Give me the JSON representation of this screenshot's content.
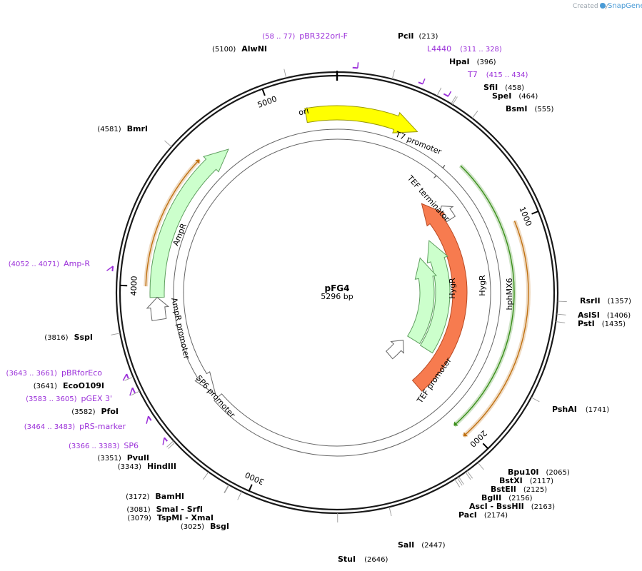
{
  "credit": {
    "created_by": "Created by",
    "brand": "SnapGene"
  },
  "plasmid": {
    "name": "pFG4",
    "size_label": "5296 bp",
    "length": 5296
  },
  "ticks": [
    {
      "value": 1000,
      "label": "1000"
    },
    {
      "value": 2000,
      "label": "2000"
    },
    {
      "value": 3000,
      "label": "3000"
    },
    {
      "value": 4000,
      "label": "4000"
    },
    {
      "value": 5000,
      "label": "5000"
    }
  ],
  "features": [
    {
      "name": "ori",
      "label": "ori",
      "color": "#ffff00",
      "stroke": "#9a9a00",
      "start": 5150,
      "end": 390,
      "strand": 1,
      "track": 0,
      "label_inside": true
    },
    {
      "name": "t7-promoter",
      "label": "T7 promoter",
      "color": "#ffffff",
      "stroke": "#666666",
      "start": 580,
      "end": 600,
      "strand": 1,
      "track": 1,
      "label_inside": false
    },
    {
      "name": "tef-terminator",
      "label": "TEF terminator",
      "color": "#ffffff",
      "stroke": "#666666",
      "start": 840,
      "end": 740,
      "strand": -1,
      "track": 2,
      "label_inside": false
    },
    {
      "name": "hphmx6",
      "label": "hphMX6",
      "color": "#f77b4f",
      "stroke": "#b84a24",
      "start": 2050,
      "end": 640,
      "strand": -1,
      "track": 3,
      "label_inside": true
    },
    {
      "name": "hygr-outer",
      "label": "HygR",
      "color": "#ccffcc",
      "stroke": "#5f9f5f",
      "start": 1800,
      "end": 890,
      "strand": -1,
      "track": 4,
      "label_inside": true
    },
    {
      "name": "hygr-inner",
      "label": "HygR",
      "color": "#ccffcc",
      "stroke": "#5f9f5f",
      "start": 1790,
      "end": 990,
      "strand": -1,
      "track": 5,
      "label_inside": true
    },
    {
      "name": "tef-promoter",
      "label": "TEF promoter",
      "color": "#ffffff",
      "stroke": "#666666",
      "start": 2060,
      "end": 1850,
      "strand": -1,
      "track": 6,
      "label_inside": false
    },
    {
      "name": "ampr",
      "label": "AmpR",
      "color": "#ccffcc",
      "stroke": "#5f9f5f",
      "start": 3950,
      "end": 4750,
      "strand": 1,
      "track": 0,
      "label_inside": true
    },
    {
      "name": "ampr-promoter",
      "label": "AmpR promoter",
      "color": "#ffffff",
      "stroke": "#666666",
      "start": 3845,
      "end": 3950,
      "strand": 1,
      "track": 0,
      "label_inside": false
    },
    {
      "name": "sp6-promoter",
      "label": "SP6 promoter",
      "color": "#ffffff",
      "stroke": "#666666",
      "start": 3365,
      "end": 3384,
      "strand": -1,
      "track": 1,
      "label_inside": false
    }
  ],
  "primer_bars": [
    {
      "name": "l4440-bar",
      "start": 311,
      "end": 328,
      "strand": 1,
      "color": "#9b30d9"
    },
    {
      "name": "t7-bar",
      "start": 415,
      "end": 434,
      "strand": 1,
      "color": "#9b30d9"
    },
    {
      "name": "pbr322ori-f-bar",
      "start": 58,
      "end": 77,
      "strand": 1,
      "color": "#9b30d9"
    },
    {
      "name": "amp-r-bar",
      "start": 4052,
      "end": 4071,
      "strand": -1,
      "color": "#9b30d9"
    },
    {
      "name": "pbrforeco-bar",
      "start": 3643,
      "end": 3661,
      "strand": -1,
      "color": "#9b30d9"
    },
    {
      "name": "pgex3-bar",
      "start": 3583,
      "end": 3605,
      "strand": -1,
      "color": "#9b30d9"
    },
    {
      "name": "prs-marker-bar",
      "start": 3464,
      "end": 3483,
      "strand": -1,
      "color": "#9b30d9"
    },
    {
      "name": "sp6-bar",
      "start": 3366,
      "end": 3383,
      "strand": -1,
      "color": "#9b30d9"
    }
  ],
  "thin_arrows": [
    {
      "name": "primer-arrow-hph-green",
      "color": "#3a8f1a",
      "start": 650,
      "end": 2040,
      "strand": 1,
      "radius_offset": -20
    },
    {
      "name": "primer-arrow-hph-orange",
      "color": "#c07010",
      "start": 1000,
      "end": 2040,
      "strand": 1,
      "radius_offset": 0
    },
    {
      "name": "primer-arrow-ampr-orange",
      "color": "#c07010",
      "start": 4000,
      "end": 4620,
      "strand": 1,
      "radius_offset": 0
    }
  ],
  "sites": [
    {
      "name": "PciI",
      "pos": "(213)",
      "position": 213
    },
    {
      "name": "HpaI",
      "pos": "(396)",
      "position": 396
    },
    {
      "name": "SfiI",
      "pos": "(458)",
      "position": 458
    },
    {
      "name": "SpeI",
      "pos": "(464)",
      "position": 464
    },
    {
      "name": "BsmI",
      "pos": "(555)",
      "position": 555
    },
    {
      "name": "RsrII",
      "pos": "(1357)",
      "position": 1357
    },
    {
      "name": "AsiSI",
      "pos": "(1406)",
      "position": 1406
    },
    {
      "name": "PstI",
      "pos": "(1435)",
      "position": 1435
    },
    {
      "name": "PshAI",
      "pos": "(1741)",
      "position": 1741
    },
    {
      "name": "Bpu10I",
      "pos": "(2065)",
      "position": 2065
    },
    {
      "name": "BstXI",
      "pos": "(2117)",
      "position": 2117
    },
    {
      "name": "BstEII",
      "pos": "(2125)",
      "position": 2125
    },
    {
      "name": "BglII",
      "pos": "(2156)",
      "position": 2156
    },
    {
      "name": "AscI - BssHII",
      "pos": "(2163)",
      "position": 2163
    },
    {
      "name": "PacI",
      "pos": "(2174)",
      "position": 2174
    },
    {
      "name": "SalI",
      "pos": "(2447)",
      "position": 2447
    },
    {
      "name": "StuI",
      "pos": "(2646)",
      "position": 2646
    },
    {
      "name": "BsgI",
      "pos": "(3025)",
      "position": 3025
    },
    {
      "name": "TspMI - XmaI",
      "pos": "(3079)",
      "position": 3079
    },
    {
      "name": "SmaI - SrfI",
      "pos": "(3081)",
      "position": 3081
    },
    {
      "name": "BamHI",
      "pos": "(3172)",
      "position": 3172
    },
    {
      "name": "HindIII",
      "pos": "(3343)",
      "position": 3343
    },
    {
      "name": "PvuII",
      "pos": "(3351)",
      "position": 3351
    },
    {
      "name": "PfoI",
      "pos": "(3582)",
      "position": 3582
    },
    {
      "name": "EcoO109I",
      "pos": "(3641)",
      "position": 3641
    },
    {
      "name": "SspI",
      "pos": "(3816)",
      "position": 3816
    },
    {
      "name": "BmrI",
      "pos": "(4581)",
      "position": 4581
    },
    {
      "name": "AlwNI",
      "pos": "(5100)",
      "position": 5100
    }
  ],
  "primers": [
    {
      "name": "pBR322ori-F",
      "pos": "(58 .. 77)",
      "position": 67
    },
    {
      "name": "L4440",
      "pos": "(311 .. 328)",
      "position": 320
    },
    {
      "name": "T7",
      "pos": "(415 .. 434)",
      "position": 425
    },
    {
      "name": "Amp-R",
      "pos": "(4052 .. 4071)",
      "position": 4061
    },
    {
      "name": "pBRforEco",
      "pos": "(3643 .. 3661)",
      "position": 3652
    },
    {
      "name": "pGEX 3'",
      "pos": "(3583 .. 3605)",
      "position": 3594
    },
    {
      "name": "pRS-marker",
      "pos": "(3464 .. 3483)",
      "position": 3473
    },
    {
      "name": "SP6",
      "pos": "(3366 .. 3383)",
      "position": 3374
    }
  ]
}
